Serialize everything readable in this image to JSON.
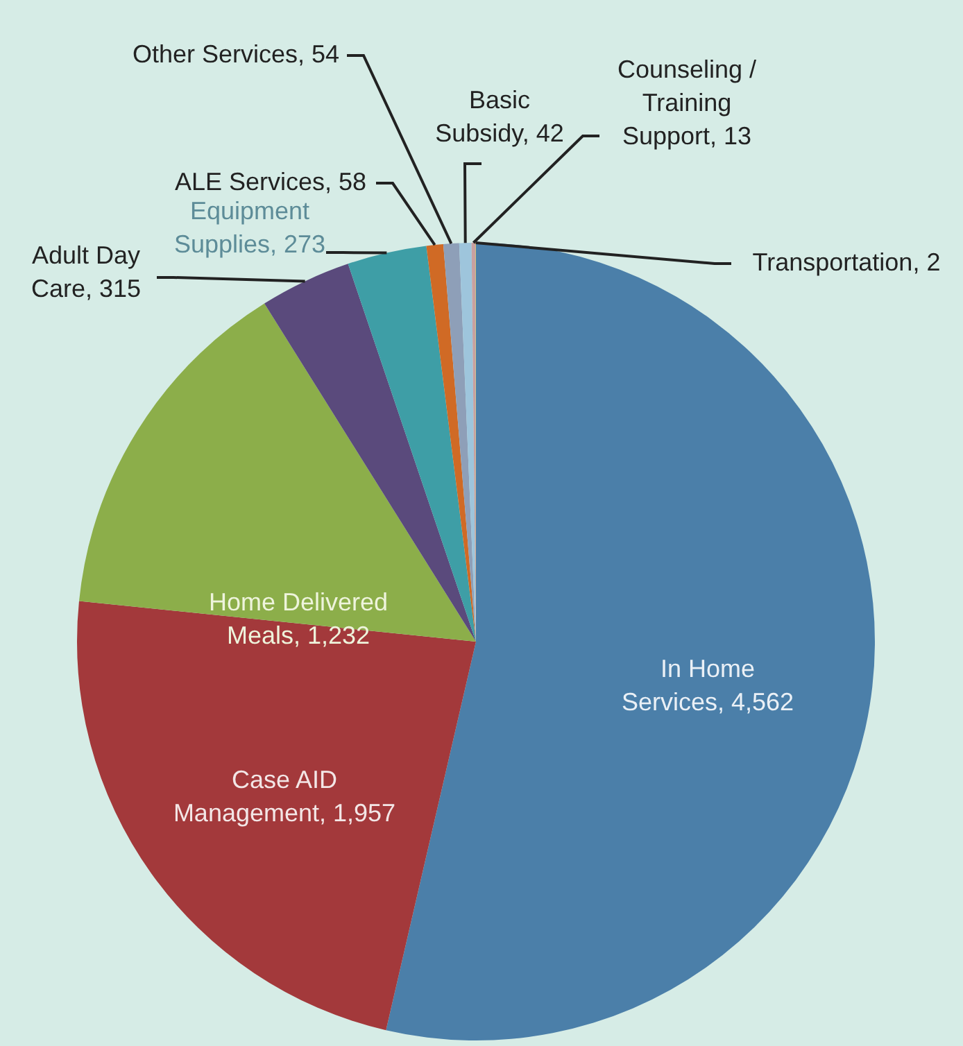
{
  "chart_data": {
    "type": "pie",
    "categories": [
      "In Home Services",
      "Case AID Management",
      "Home Delivered Meals",
      "Adult Day Care",
      "Equipment Supplies",
      "ALE Services",
      "Other Services",
      "Basic Subsidy",
      "Counseling / Training Support",
      "Transportation"
    ],
    "value_labels": [
      "4,562",
      "1,957",
      "1,232",
      "315",
      "273",
      "58",
      "54",
      "42",
      "13",
      "2"
    ],
    "values": [
      4562,
      1957,
      1232,
      315,
      273,
      58,
      54,
      42,
      13,
      2
    ],
    "colors": [
      "#4b7fa9",
      "#a3393b",
      "#8cae4a",
      "#5a4a7c",
      "#3e9ea6",
      "#d06a25",
      "#8e9fb8",
      "#9ec5dc",
      "#c9a0a0",
      "#c9c074"
    ],
    "legend": false
  }
}
